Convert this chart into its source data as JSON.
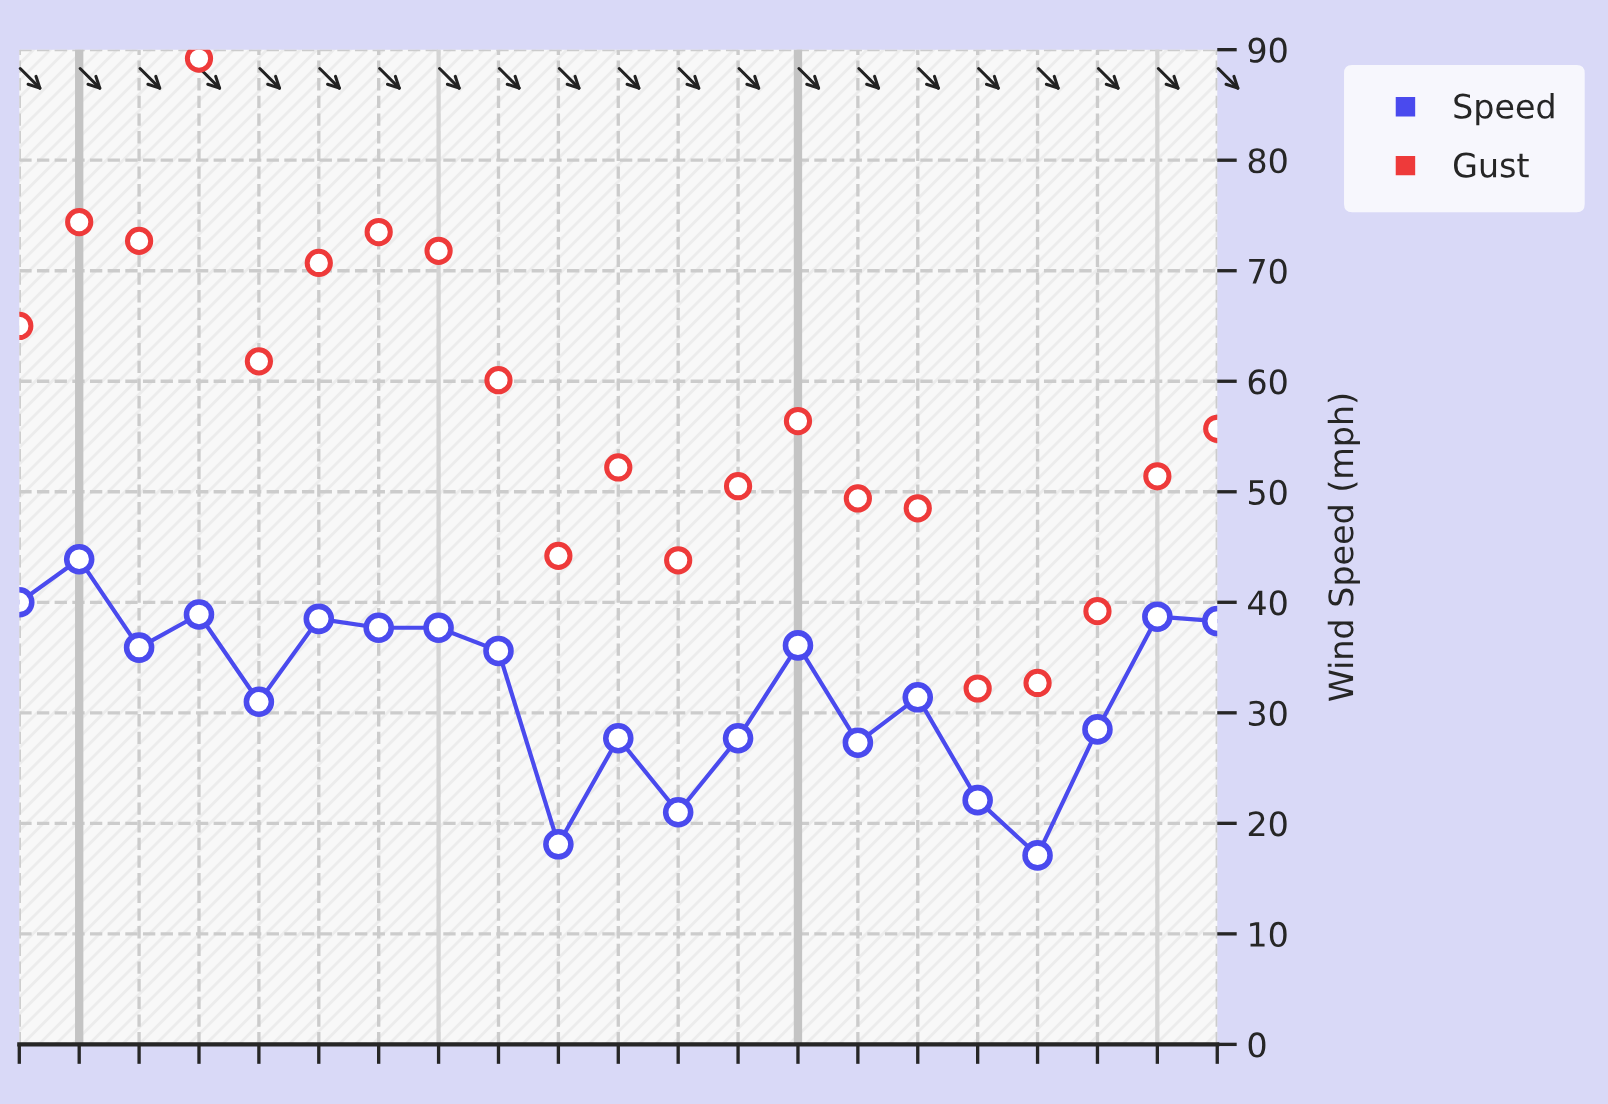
{
  "chart_data": {
    "type": "line",
    "ylabel": "Wind Speed (mph)",
    "categories": [
      null,
      null,
      null,
      null,
      null,
      null,
      null,
      null,
      null,
      null,
      null,
      null,
      null,
      null,
      null,
      null,
      null,
      null,
      null,
      null,
      null
    ],
    "series": [
      {
        "name": "Speed",
        "color": "#4a4aee",
        "marker": "circle",
        "values": [
          40.0,
          43.9,
          35.9,
          38.9,
          31.0,
          38.5,
          37.7,
          37.7,
          35.6,
          18.1,
          27.7,
          21.0,
          27.7,
          36.1,
          27.3,
          31.4,
          22.1,
          17.1,
          28.5,
          38.7,
          38.3
        ]
      },
      {
        "name": "Gust",
        "type": "scatter",
        "color": "#ee3a3a",
        "marker": "circle",
        "values": [
          65.0,
          74.4,
          72.7,
          89.2,
          61.8,
          70.7,
          73.5,
          71.8,
          60.1,
          44.2,
          52.2,
          43.8,
          50.5,
          56.4,
          49.4,
          48.5,
          32.2,
          32.7,
          39.2,
          51.4,
          55.7
        ]
      }
    ],
    "ylim": [
      0,
      90
    ],
    "yticks": [
      0,
      10,
      20,
      30,
      40,
      50,
      60,
      70,
      80,
      90
    ],
    "grid": true,
    "legend": "top right",
    "tick_labels": "y"
  }
}
